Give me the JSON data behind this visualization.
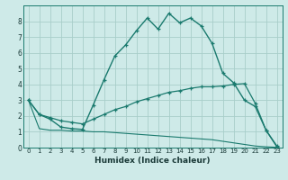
{
  "xlabel": "Humidex (Indice chaleur)",
  "bg_color": "#ceeae8",
  "line_color": "#1a7a6e",
  "grid_color": "#a8ceca",
  "xlim": [
    -0.5,
    23.5
  ],
  "ylim": [
    0,
    9
  ],
  "xticks": [
    0,
    1,
    2,
    3,
    4,
    5,
    6,
    7,
    8,
    9,
    10,
    11,
    12,
    13,
    14,
    15,
    16,
    17,
    18,
    19,
    20,
    21,
    22,
    23
  ],
  "yticks": [
    0,
    1,
    2,
    3,
    4,
    5,
    6,
    7,
    8
  ],
  "line1_x": [
    0,
    1,
    2,
    3,
    4,
    5,
    6,
    7,
    8,
    9,
    10,
    11,
    12,
    13,
    14,
    15,
    16,
    17,
    18,
    19,
    20,
    21,
    22,
    23
  ],
  "line1_y": [
    3.0,
    2.1,
    1.8,
    1.3,
    1.2,
    1.15,
    2.7,
    4.3,
    5.8,
    6.5,
    7.4,
    8.2,
    7.5,
    8.5,
    7.9,
    8.2,
    7.7,
    6.6,
    4.7,
    4.1,
    3.0,
    2.6,
    1.1,
    0.1
  ],
  "line2_x": [
    0,
    1,
    2,
    3,
    4,
    5,
    6,
    7,
    8,
    9,
    10,
    11,
    12,
    13,
    14,
    15,
    16,
    17,
    18,
    19,
    20,
    21,
    22,
    23
  ],
  "line2_y": [
    3.0,
    2.1,
    1.9,
    1.7,
    1.6,
    1.5,
    1.8,
    2.1,
    2.4,
    2.6,
    2.9,
    3.1,
    3.3,
    3.5,
    3.6,
    3.75,
    3.85,
    3.85,
    3.9,
    4.0,
    4.05,
    2.8,
    1.1,
    0.05
  ],
  "line3_x": [
    0,
    1,
    2,
    3,
    4,
    5,
    6,
    7,
    8,
    9,
    10,
    11,
    12,
    13,
    14,
    15,
    16,
    17,
    18,
    19,
    20,
    21,
    22,
    23
  ],
  "line3_y": [
    3.0,
    1.2,
    1.1,
    1.1,
    1.05,
    1.05,
    1.0,
    1.0,
    0.95,
    0.9,
    0.85,
    0.8,
    0.75,
    0.7,
    0.65,
    0.6,
    0.55,
    0.5,
    0.4,
    0.3,
    0.2,
    0.1,
    0.05,
    0.02
  ]
}
